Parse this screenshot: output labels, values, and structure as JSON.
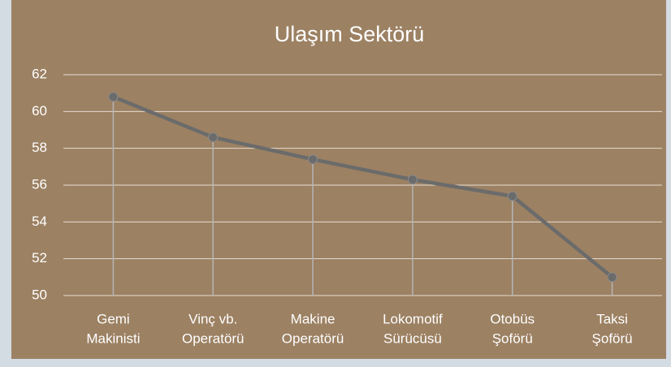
{
  "chart_data": {
    "type": "line",
    "title": "Ulaşım Sektörü",
    "categories": [
      [
        "Gemi",
        "Makinisti"
      ],
      [
        "Vinç vb.",
        "Operatörü"
      ],
      [
        "Makine",
        "Operatörü"
      ],
      [
        "Lokomotif",
        "Sürücüsü"
      ],
      [
        "Otobüs",
        "Şoförü"
      ],
      [
        "Taksi",
        "Şoförü"
      ]
    ],
    "values": [
      60.8,
      58.6,
      57.4,
      56.3,
      55.4,
      51.0
    ],
    "color": "#6b6b6b",
    "ylim": [
      50,
      62
    ],
    "yticks": [
      50,
      52,
      54,
      56,
      58,
      60,
      62
    ],
    "grid": true,
    "drop_lines": true
  }
}
